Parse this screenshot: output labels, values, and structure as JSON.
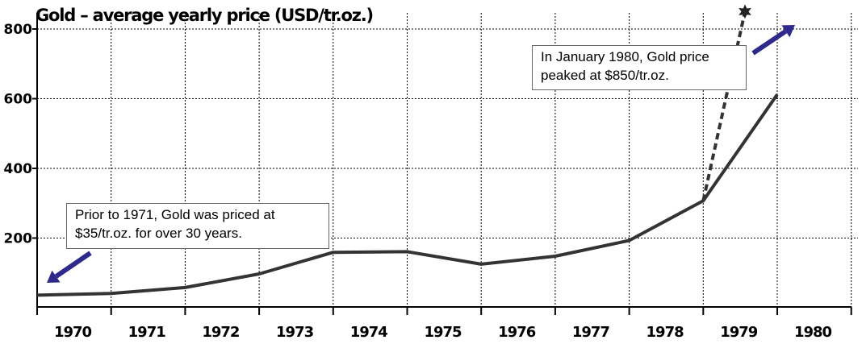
{
  "chart_data": {
    "type": "line",
    "title": "Gold – average yearly price (USD/tr.oz.)",
    "xlabel": "",
    "ylabel": "",
    "categories": [
      "1970",
      "1971",
      "1972",
      "1973",
      "1974",
      "1975",
      "1976",
      "1977",
      "1978",
      "1979",
      "1980"
    ],
    "series": [
      {
        "values": [
          36,
          41,
          58,
          97,
          159,
          161,
          125,
          148,
          193,
          307,
          612
        ]
      }
    ],
    "projection": {
      "from_year": "1979",
      "from_value": 307,
      "to_year": "1980",
      "to_value": 850,
      "style": "dashed",
      "marker": "star"
    },
    "ylim": [
      0,
      850
    ],
    "yticks": [
      200,
      400,
      600,
      800
    ],
    "grid": true,
    "annotations": [
      {
        "id": "note1971",
        "lines": [
          "Prior to 1971, Gold was priced at",
          "$35/tr.oz. for over 30 years."
        ]
      },
      {
        "id": "note1980",
        "lines": [
          "In January 1980, Gold price",
          "peaked at $850/tr.oz."
        ]
      }
    ],
    "colors": {
      "line": "#333333",
      "arrow": "#2e2a8c",
      "grid": "#000000"
    }
  }
}
